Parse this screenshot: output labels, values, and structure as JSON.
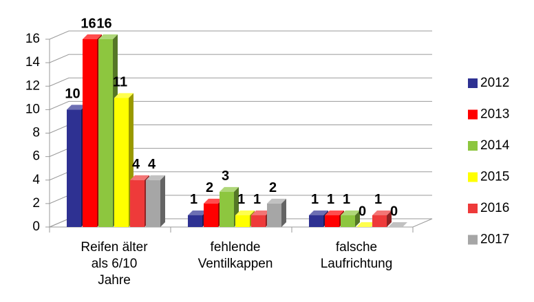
{
  "chart_data": {
    "type": "bar3d",
    "categories": [
      "Reifen älter\nals 6/10\nJahre",
      "fehlende\nVentilkappen",
      "falsche\nLaufrichtung"
    ],
    "series": [
      {
        "name": "2012",
        "color": "#2e3192",
        "values": [
          10,
          1,
          1
        ]
      },
      {
        "name": "2013",
        "color": "#ff0000",
        "values": [
          16,
          2,
          1
        ]
      },
      {
        "name": "2014",
        "color": "#8dc63f",
        "values": [
          16,
          3,
          1
        ]
      },
      {
        "name": "2015",
        "color": "#ffff00",
        "values": [
          11,
          1,
          0
        ]
      },
      {
        "name": "2016",
        "color": "#ee3a3a",
        "values": [
          4,
          1,
          1
        ]
      },
      {
        "name": "2017",
        "color": "#a6a6a6",
        "values": [
          4,
          2,
          0
        ]
      }
    ],
    "ylim": [
      0,
      16
    ],
    "yticks": [
      0,
      2,
      4,
      6,
      8,
      10,
      12,
      14,
      16
    ],
    "grid": true,
    "legend": "right"
  }
}
